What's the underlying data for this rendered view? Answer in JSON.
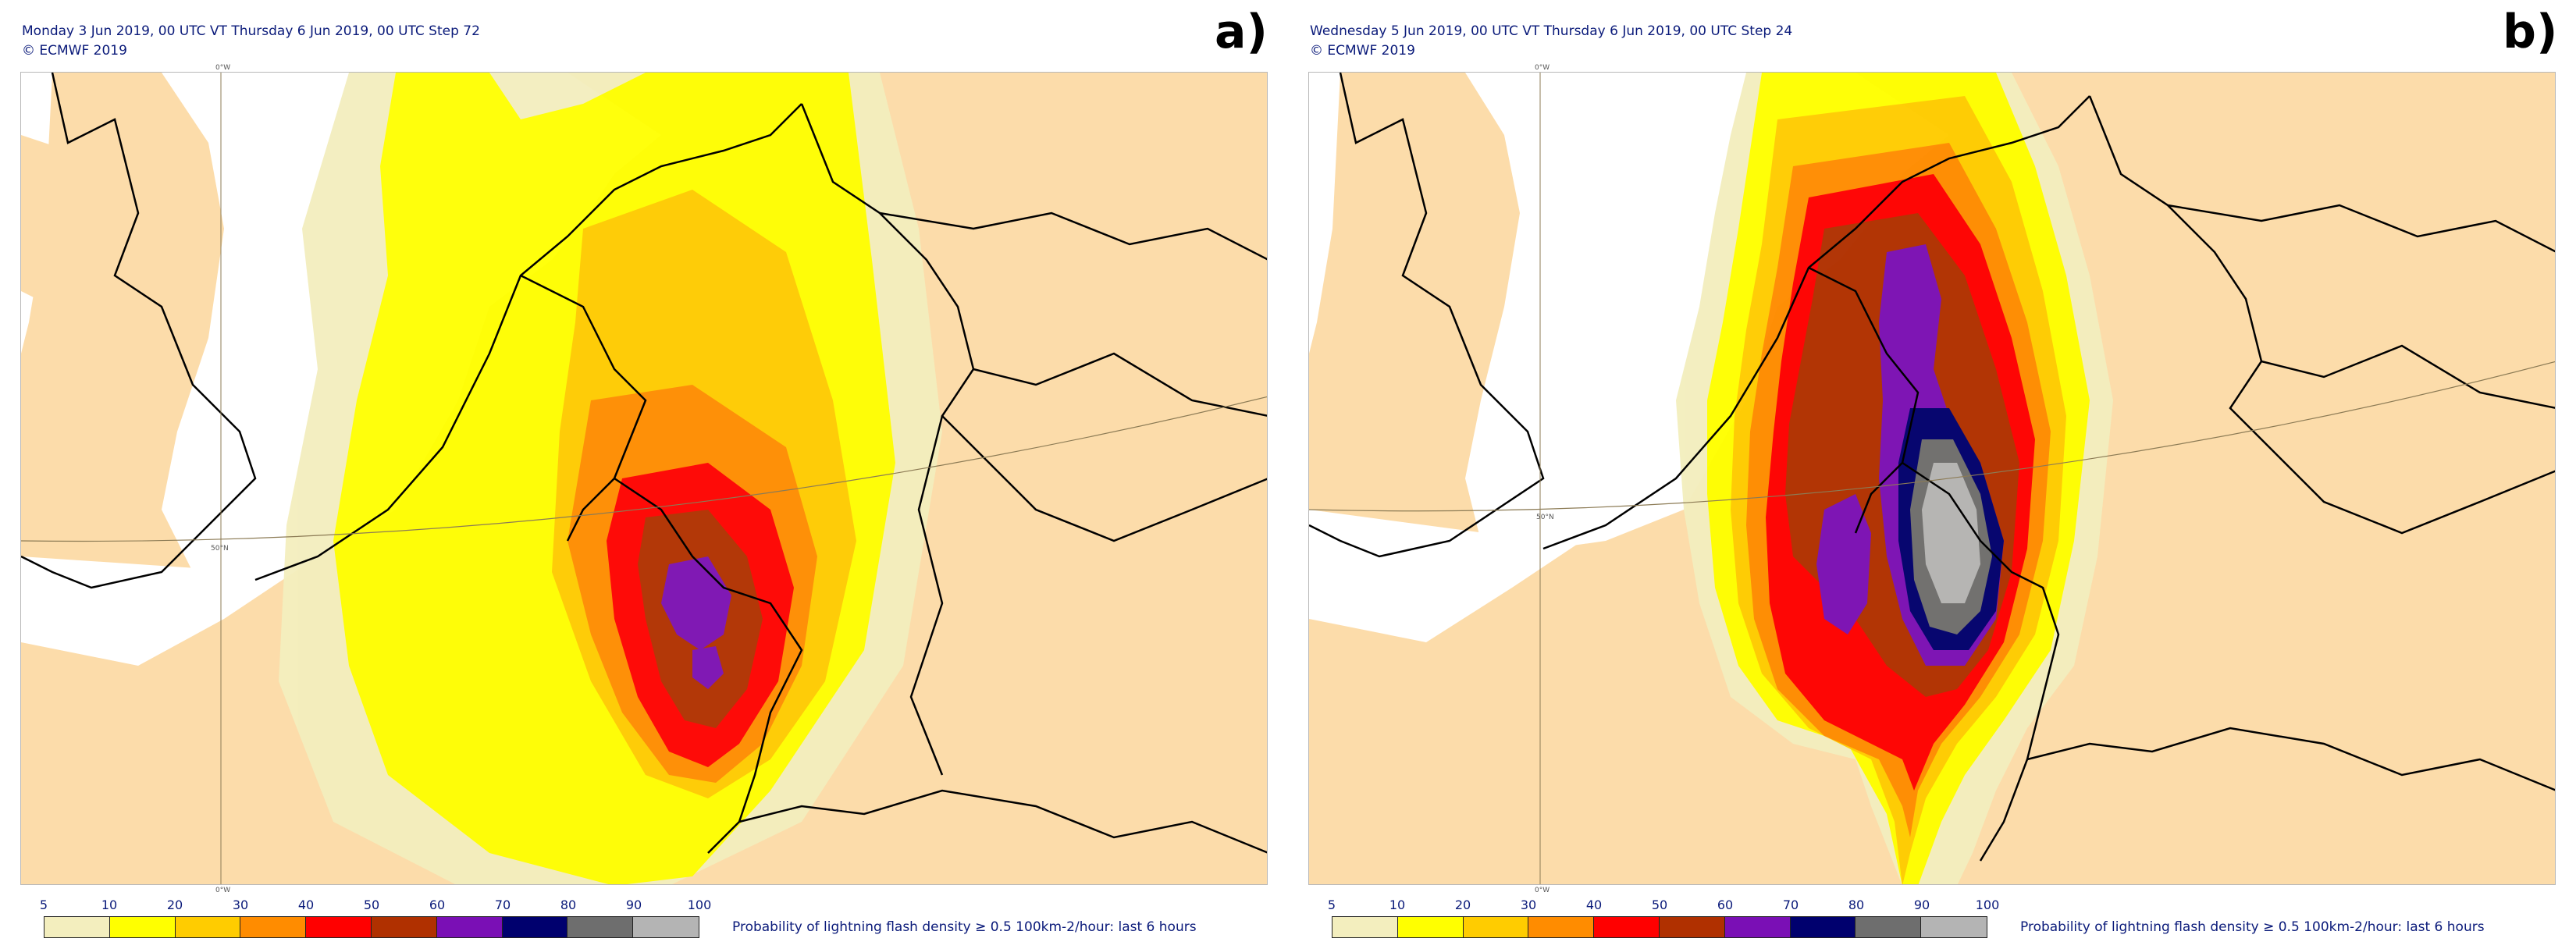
{
  "panels": [
    {
      "id": "a",
      "line1": "Monday 3 Jun 2019, 00 UTC VT Thursday 6 Jun 2019, 00 UTC Step 72",
      "line2": "© ECMWF 2019",
      "letter": "a)"
    },
    {
      "id": "b",
      "line1": "Wednesday 5 Jun 2019, 00 UTC VT Thursday 6 Jun 2019, 00 UTC Step 24",
      "line2": "© ECMWF 2019",
      "letter": "b)"
    }
  ],
  "meridian_label": "0°W",
  "parallel_label": "50°N",
  "legend": {
    "ticks": [
      "5",
      "10",
      "20",
      "30",
      "40",
      "50",
      "60",
      "70",
      "80",
      "90",
      "100"
    ],
    "colors": [
      "#f3eebe",
      "#ffff00",
      "#ffcc00",
      "#ff8c00",
      "#ff0000",
      "#b03000",
      "#7a0fb5",
      "#00006e",
      "#6e6e6e",
      "#b4b4b4"
    ],
    "title": "Probability of lightning flash density ≥ 0.5 100km-2/hour: last 6 hours"
  },
  "colors": {
    "land": "#fcdcaa",
    "sea": "#ffffff",
    "header_text": "#0a1a7a"
  }
}
